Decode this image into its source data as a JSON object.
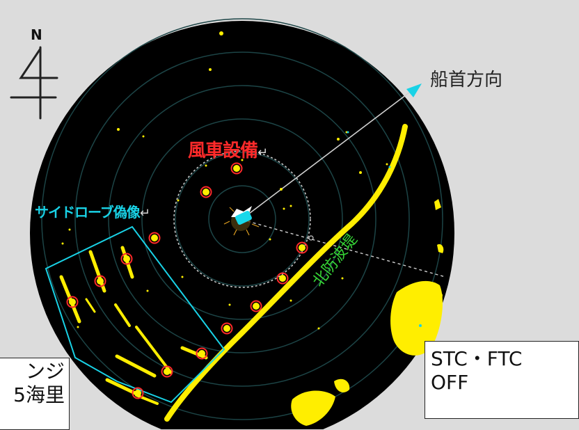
{
  "compass": {
    "north_letter": "N",
    "icon": "north-arrow-icon"
  },
  "labels": {
    "heading": "船首方向",
    "wind_farm": "風車設備",
    "side_lobe": "サイドローブ偽像",
    "breakwater": "北防波堤",
    "return_symbol": "↵"
  },
  "range_box": {
    "line1": "ンジ",
    "line2": "5海里"
  },
  "stc_box": {
    "line1": "STC・FTC",
    "line2": "OFF"
  },
  "colors": {
    "background": "#dcdcdc",
    "radar_screen": "#000000",
    "echo": "#ffee00",
    "target_marker": "#ff2a2a",
    "heading_marker": "#19d2e6",
    "wind_farm_label": "#ff2a2a",
    "side_lobe_label": "#19d2e6",
    "breakwater_label": "#36d436"
  }
}
